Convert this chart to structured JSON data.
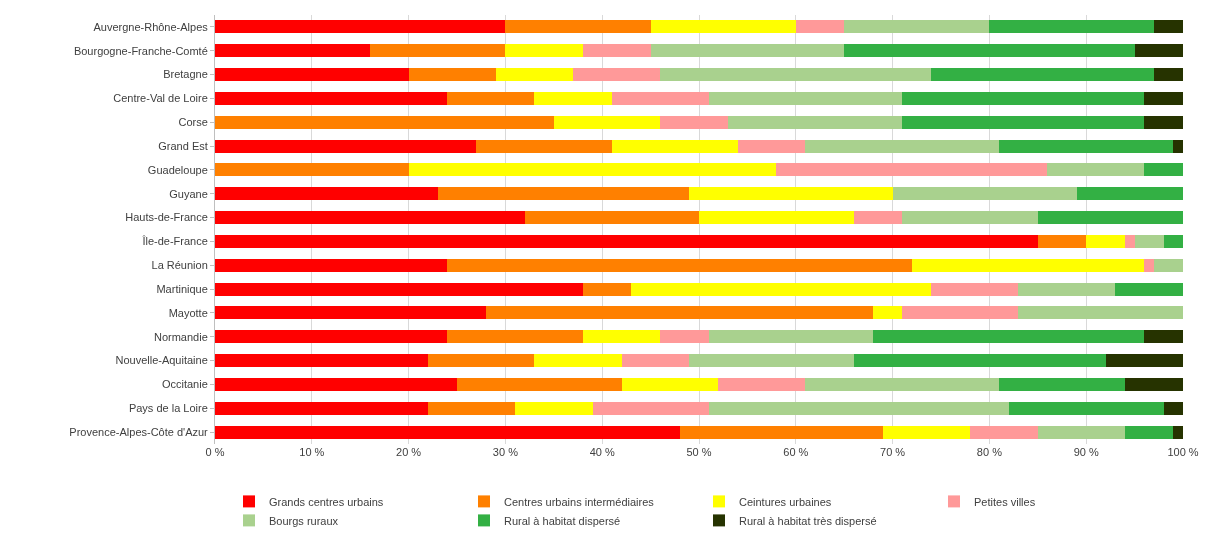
{
  "chart_data": {
    "type": "bar",
    "orientation": "horizontal",
    "stacked": true,
    "categories": [
      "Auvergne-Rhône-Alpes",
      "Bourgogne-Franche-Comté",
      "Bretagne",
      "Centre-Val de Loire",
      "Corse",
      "Grand Est",
      "Guadeloupe",
      "Guyane",
      "Hauts-de-France",
      "Île-de-France",
      "La Réunion",
      "Martinique",
      "Mayotte",
      "Normandie",
      "Nouvelle-Aquitaine",
      "Occitanie",
      "Pays de la Loire",
      "Provence-Alpes-Côte d'Azur"
    ],
    "series": [
      {
        "name": "Grands centres urbains",
        "color": "#ff0000",
        "values": [
          30,
          16,
          20,
          24,
          0,
          27,
          0,
          23,
          32,
          85,
          24,
          38,
          28,
          24,
          22,
          25,
          22,
          48
        ]
      },
      {
        "name": "Centres urbains intermédiaires",
        "color": "#ff8000",
        "values": [
          15,
          14,
          9,
          9,
          35,
          14,
          20,
          26,
          18,
          5,
          48,
          5,
          40,
          14,
          11,
          17,
          9,
          21
        ]
      },
      {
        "name": "Ceintures urbaines",
        "color": "#ffff00",
        "values": [
          15,
          8,
          8,
          8,
          11,
          13,
          38,
          21,
          16,
          4,
          24,
          31,
          3,
          8,
          9,
          10,
          8,
          9
        ]
      },
      {
        "name": "Petites villes",
        "color": "#ff9999",
        "values": [
          5,
          7,
          9,
          10,
          7,
          7,
          28,
          0,
          5,
          1,
          1,
          9,
          12,
          5,
          7,
          9,
          12,
          7
        ]
      },
      {
        "name": "Bourgs ruraux",
        "color": "#a9d18e",
        "values": [
          15,
          20,
          28,
          20,
          18,
          20,
          10,
          19,
          14,
          3,
          3,
          10,
          17,
          17,
          17,
          20,
          31,
          9
        ]
      },
      {
        "name": "Rural à habitat dispersé",
        "color": "#33b044",
        "values": [
          17,
          30,
          23,
          25,
          25,
          18,
          4,
          11,
          15,
          2,
          0,
          7,
          0,
          28,
          26,
          13,
          16,
          5
        ]
      },
      {
        "name": "Rural à habitat très dispersé",
        "color": "#263300",
        "values": [
          3,
          5,
          3,
          4,
          4,
          1,
          0,
          0,
          0,
          0,
          0,
          0,
          0,
          4,
          8,
          6,
          2,
          1
        ]
      }
    ],
    "xlim": [
      0,
      100
    ],
    "xticks": [
      {
        "value": 0,
        "label": "0 %"
      },
      {
        "value": 10,
        "label": "10 %"
      },
      {
        "value": 20,
        "label": "20 %"
      },
      {
        "value": 30,
        "label": "30 %"
      },
      {
        "value": 40,
        "label": "40 %"
      },
      {
        "value": 50,
        "label": "50 %"
      },
      {
        "value": 60,
        "label": "60 %"
      },
      {
        "value": 70,
        "label": "70 %"
      },
      {
        "value": 80,
        "label": "80 %"
      },
      {
        "value": 90,
        "label": "90 %"
      },
      {
        "value": 100,
        "label": "100 %"
      }
    ],
    "grid": "x",
    "legend": "bottom"
  }
}
